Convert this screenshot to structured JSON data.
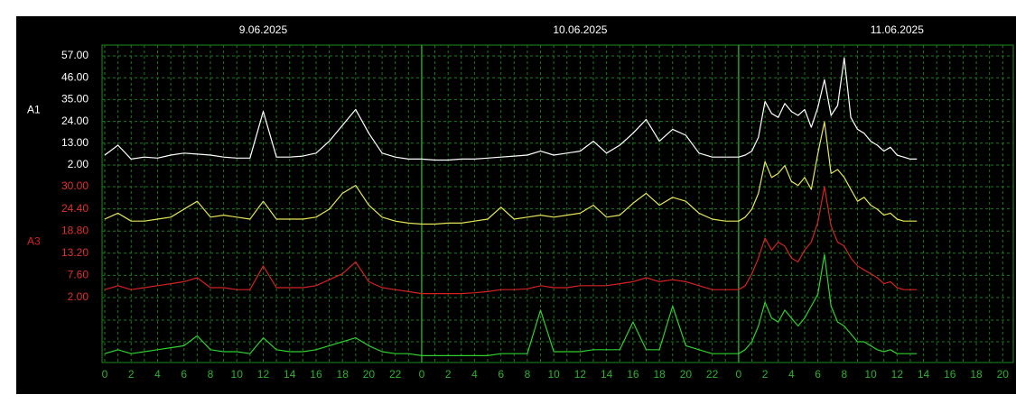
{
  "chart_data": {
    "type": "line",
    "date_labels": [
      {
        "value": 12,
        "label": "9.06.2025"
      },
      {
        "value": 36,
        "label": "10.06.2025"
      },
      {
        "value": 60,
        "label": "11.06.2025"
      }
    ],
    "day_lines": [
      24,
      48
    ],
    "x": [
      0,
      1,
      2,
      3,
      4,
      5,
      6,
      7,
      8,
      9,
      10,
      11,
      12,
      13,
      14,
      15,
      16,
      17,
      18,
      19,
      20,
      21,
      22,
      23,
      24,
      25,
      26,
      27,
      28,
      29,
      30,
      31,
      32,
      33,
      34,
      35,
      36,
      37,
      38,
      39,
      40,
      41,
      42,
      43,
      44,
      45,
      46,
      47,
      48,
      48.5,
      49,
      49.5,
      50,
      50.5,
      51,
      51.5,
      52,
      52.5,
      53,
      53.5,
      54,
      54.5,
      55,
      55.5,
      56,
      56.5,
      57,
      57.5,
      58,
      58.5,
      59,
      59.5,
      60,
      60.5,
      61,
      61.5
    ],
    "xlim": [
      0,
      68.8
    ],
    "xticks": [
      0,
      2,
      4,
      6,
      8,
      10,
      12,
      14,
      16,
      18,
      20,
      22,
      {
        "value": 24,
        "label": "0"
      },
      {
        "value": 26,
        "label": "2"
      },
      {
        "value": 28,
        "label": "4"
      },
      {
        "value": 30,
        "label": "6"
      },
      {
        "value": 32,
        "label": "8"
      },
      {
        "value": 34,
        "label": "10"
      },
      {
        "value": 36,
        "label": "12"
      },
      {
        "value": 38,
        "label": "14"
      },
      {
        "value": 40,
        "label": "16"
      },
      {
        "value": 42,
        "label": "18"
      },
      {
        "value": 44,
        "label": "20"
      },
      {
        "value": 46,
        "label": "22"
      },
      {
        "value": 48,
        "label": "0"
      },
      {
        "value": 50,
        "label": "2"
      },
      {
        "value": 52,
        "label": "4"
      },
      {
        "value": 54,
        "label": "6"
      },
      {
        "value": 56,
        "label": "8"
      },
      {
        "value": 58,
        "label": "10"
      },
      {
        "value": 60,
        "label": "12"
      },
      {
        "value": 62,
        "label": "14"
      },
      {
        "value": 64,
        "label": "16"
      },
      {
        "value": 66,
        "label": "18"
      },
      {
        "value": 68,
        "label": "20"
      }
    ],
    "ylim": [
      2,
      57
    ],
    "yticks": [
      {
        "value": 57,
        "label": "57.00"
      },
      {
        "value": 46,
        "label": "46.00"
      },
      {
        "value": 35,
        "label": "35.00"
      },
      {
        "value": 24,
        "label": "24.00"
      },
      {
        "value": 13,
        "label": "13.00"
      },
      {
        "value": 2,
        "label": "2.00"
      }
    ],
    "y2lim": [
      2,
      30
    ],
    "y2ticks": [
      {
        "value": 30,
        "label": "30.00"
      },
      {
        "value": 24.4,
        "label": "24.40"
      },
      {
        "value": 18.8,
        "label": "18.80"
      },
      {
        "value": 13.2,
        "label": "13.20"
      },
      {
        "value": 7.6,
        "label": "7.60"
      },
      {
        "value": 2,
        "label": "2.00"
      }
    ],
    "grid": true,
    "series": [
      {
        "name": "A1",
        "color": "#ffffff",
        "axis": "y",
        "values": [
          7,
          12,
          5,
          6,
          5.5,
          7,
          8,
          7.5,
          7,
          6,
          5.5,
          5.5,
          29,
          6,
          6,
          6.5,
          8,
          14,
          22,
          30,
          18,
          8,
          6,
          5,
          5,
          4.5,
          4.5,
          5,
          5,
          5.5,
          6,
          6.5,
          7,
          9,
          7,
          8,
          9,
          14,
          8,
          12,
          18,
          25,
          14,
          20,
          17,
          8,
          6,
          6,
          6,
          7,
          9,
          16,
          34,
          28,
          26,
          33,
          29,
          27,
          30,
          21,
          31,
          45,
          27,
          32,
          56,
          26,
          20,
          18,
          14,
          12,
          9,
          11,
          7,
          6,
          5,
          5
        ]
      },
      {
        "color": "#e6e65a",
        "axis": "y",
        "values": [
          7,
          10,
          6,
          6,
          7,
          8,
          12,
          16,
          8,
          9,
          8,
          7,
          16,
          7,
          7,
          7,
          8,
          12,
          20,
          24,
          14,
          8,
          6,
          5,
          4.5,
          4.5,
          5,
          5,
          6,
          7,
          13,
          7,
          8,
          9,
          8,
          9,
          10,
          14,
          8,
          9,
          15,
          20,
          14,
          18,
          16,
          10,
          7,
          6,
          6,
          8,
          12,
          20,
          36,
          28,
          30,
          34,
          26,
          24,
          28,
          22,
          40,
          56,
          30,
          32,
          28,
          22,
          16,
          18,
          14,
          12,
          9,
          10,
          7,
          6,
          6,
          6
        ]
      },
      {
        "name": "A3",
        "color": "#d42222",
        "axis": "y2",
        "values": [
          4,
          5,
          4,
          4.5,
          5,
          5.5,
          6,
          7,
          4.5,
          4.5,
          4,
          4,
          10,
          4.5,
          4.5,
          4.5,
          5,
          6.5,
          8,
          11,
          6,
          4.5,
          4,
          3.5,
          3,
          3,
          3,
          3,
          3.2,
          3.5,
          4,
          4,
          4.2,
          5,
          4.5,
          4.5,
          5,
          5,
          5,
          5.5,
          6,
          7,
          6,
          6.5,
          6,
          5,
          4,
          4,
          4,
          5,
          8,
          12,
          17,
          14,
          16,
          15,
          12,
          11,
          14,
          16,
          21,
          30,
          20,
          16,
          15,
          12,
          10,
          9,
          8,
          7,
          5.5,
          6,
          4.5,
          4,
          4,
          4
        ]
      },
      {
        "color": "#2fd02f",
        "axis": "y2",
        "values": [
          4,
          5,
          4,
          4.5,
          5,
          5.5,
          6,
          8.5,
          5,
          4.5,
          4.5,
          4,
          8,
          5,
          4.5,
          4.5,
          5,
          6,
          7,
          8,
          6,
          4.5,
          4,
          4,
          3.5,
          3.5,
          3.5,
          3.5,
          3.5,
          3.5,
          4,
          4,
          4,
          15,
          4.5,
          4.5,
          4.5,
          5,
          5,
          5,
          12,
          5,
          5,
          16,
          6,
          5,
          4,
          4,
          4,
          5,
          7,
          11,
          17,
          13,
          12,
          15,
          13,
          11,
          13,
          16,
          19,
          29,
          16,
          12,
          11,
          9,
          7,
          7,
          6,
          5,
          4.5,
          5,
          4,
          4,
          4,
          4
        ]
      }
    ]
  }
}
